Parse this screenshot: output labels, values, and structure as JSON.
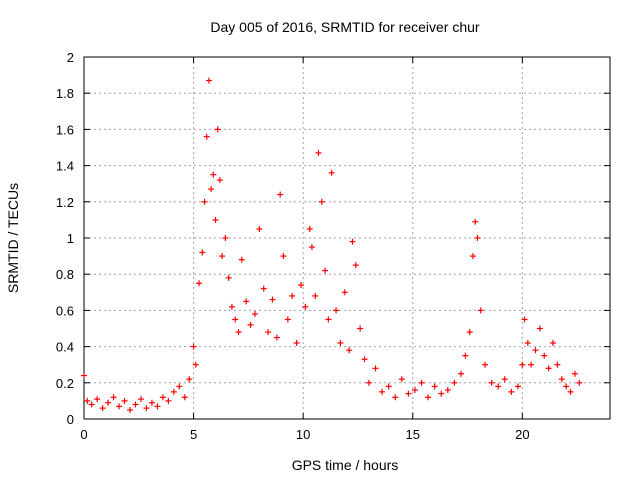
{
  "chart_data": {
    "type": "scatter",
    "title": "Day 005 of 2016, SRMTID for receiver chur",
    "xlabel": "GPS time / hours",
    "ylabel": "SRMTID / TECUs",
    "xlim": [
      0,
      24
    ],
    "ylim": [
      0,
      2
    ],
    "xticks": [
      0,
      5,
      10,
      15,
      20
    ],
    "yticks": [
      0,
      0.2,
      0.4,
      0.6,
      0.8,
      1,
      1.2,
      1.4,
      1.6,
      1.8,
      2
    ],
    "xtick_labels": [
      "0",
      "5",
      "10",
      "15",
      "20"
    ],
    "ytick_labels": [
      "0",
      "0.2",
      "0.4",
      "0.6",
      "0.8",
      "1",
      "1.2",
      "1.4",
      "1.6",
      "1.8",
      "2"
    ],
    "grid": true,
    "legend": "none",
    "marker": "+",
    "series": [
      {
        "name": "SRMTID",
        "color": "#ff0000",
        "marker": "+",
        "x": [
          0.0,
          0.15,
          0.35,
          0.6,
          0.85,
          1.1,
          1.35,
          1.6,
          1.85,
          2.1,
          2.35,
          2.6,
          2.85,
          3.1,
          3.35,
          3.6,
          3.85,
          4.1,
          4.35,
          4.6,
          4.8,
          5.0,
          5.1,
          5.25,
          5.4,
          5.5,
          5.6,
          5.7,
          5.8,
          5.9,
          6.0,
          6.1,
          6.2,
          6.3,
          6.45,
          6.6,
          6.75,
          6.9,
          7.05,
          7.2,
          7.4,
          7.6,
          7.8,
          8.0,
          8.2,
          8.4,
          8.6,
          8.8,
          8.95,
          9.1,
          9.3,
          9.5,
          9.7,
          9.9,
          10.1,
          10.3,
          10.4,
          10.55,
          10.7,
          10.85,
          11.0,
          11.15,
          11.3,
          11.5,
          11.7,
          11.9,
          12.1,
          12.25,
          12.4,
          12.6,
          12.8,
          13.0,
          13.3,
          13.6,
          13.9,
          14.2,
          14.5,
          14.8,
          15.1,
          15.4,
          15.7,
          16.0,
          16.3,
          16.6,
          16.9,
          17.2,
          17.4,
          17.6,
          17.75,
          17.85,
          17.95,
          18.1,
          18.3,
          18.6,
          18.9,
          19.2,
          19.5,
          19.8,
          20.0,
          20.1,
          20.25,
          20.4,
          20.6,
          20.8,
          21.0,
          21.2,
          21.4,
          21.6,
          21.8,
          22.0,
          22.2,
          22.4,
          22.6
        ],
        "y": [
          0.24,
          0.1,
          0.08,
          0.11,
          0.06,
          0.09,
          0.12,
          0.07,
          0.1,
          0.05,
          0.08,
          0.11,
          0.06,
          0.09,
          0.07,
          0.12,
          0.1,
          0.15,
          0.18,
          0.12,
          0.22,
          0.4,
          0.3,
          0.75,
          0.92,
          1.2,
          1.56,
          1.87,
          1.27,
          1.35,
          1.1,
          1.6,
          1.32,
          0.9,
          1.0,
          0.78,
          0.62,
          0.55,
          0.48,
          0.88,
          0.65,
          0.52,
          0.58,
          1.05,
          0.72,
          0.48,
          0.66,
          0.45,
          1.24,
          0.9,
          0.55,
          0.68,
          0.42,
          0.74,
          0.62,
          1.05,
          0.95,
          0.68,
          1.47,
          1.2,
          0.82,
          0.55,
          1.36,
          0.6,
          0.42,
          0.7,
          0.38,
          0.98,
          0.85,
          0.5,
          0.33,
          0.2,
          0.28,
          0.15,
          0.18,
          0.12,
          0.22,
          0.14,
          0.16,
          0.2,
          0.12,
          0.18,
          0.14,
          0.16,
          0.2,
          0.25,
          0.35,
          0.48,
          0.9,
          1.09,
          1.0,
          0.6,
          0.3,
          0.2,
          0.18,
          0.22,
          0.15,
          0.18,
          0.3,
          0.55,
          0.42,
          0.3,
          0.38,
          0.5,
          0.35,
          0.28,
          0.42,
          0.3,
          0.22,
          0.18,
          0.15,
          0.25,
          0.2
        ]
      }
    ]
  }
}
